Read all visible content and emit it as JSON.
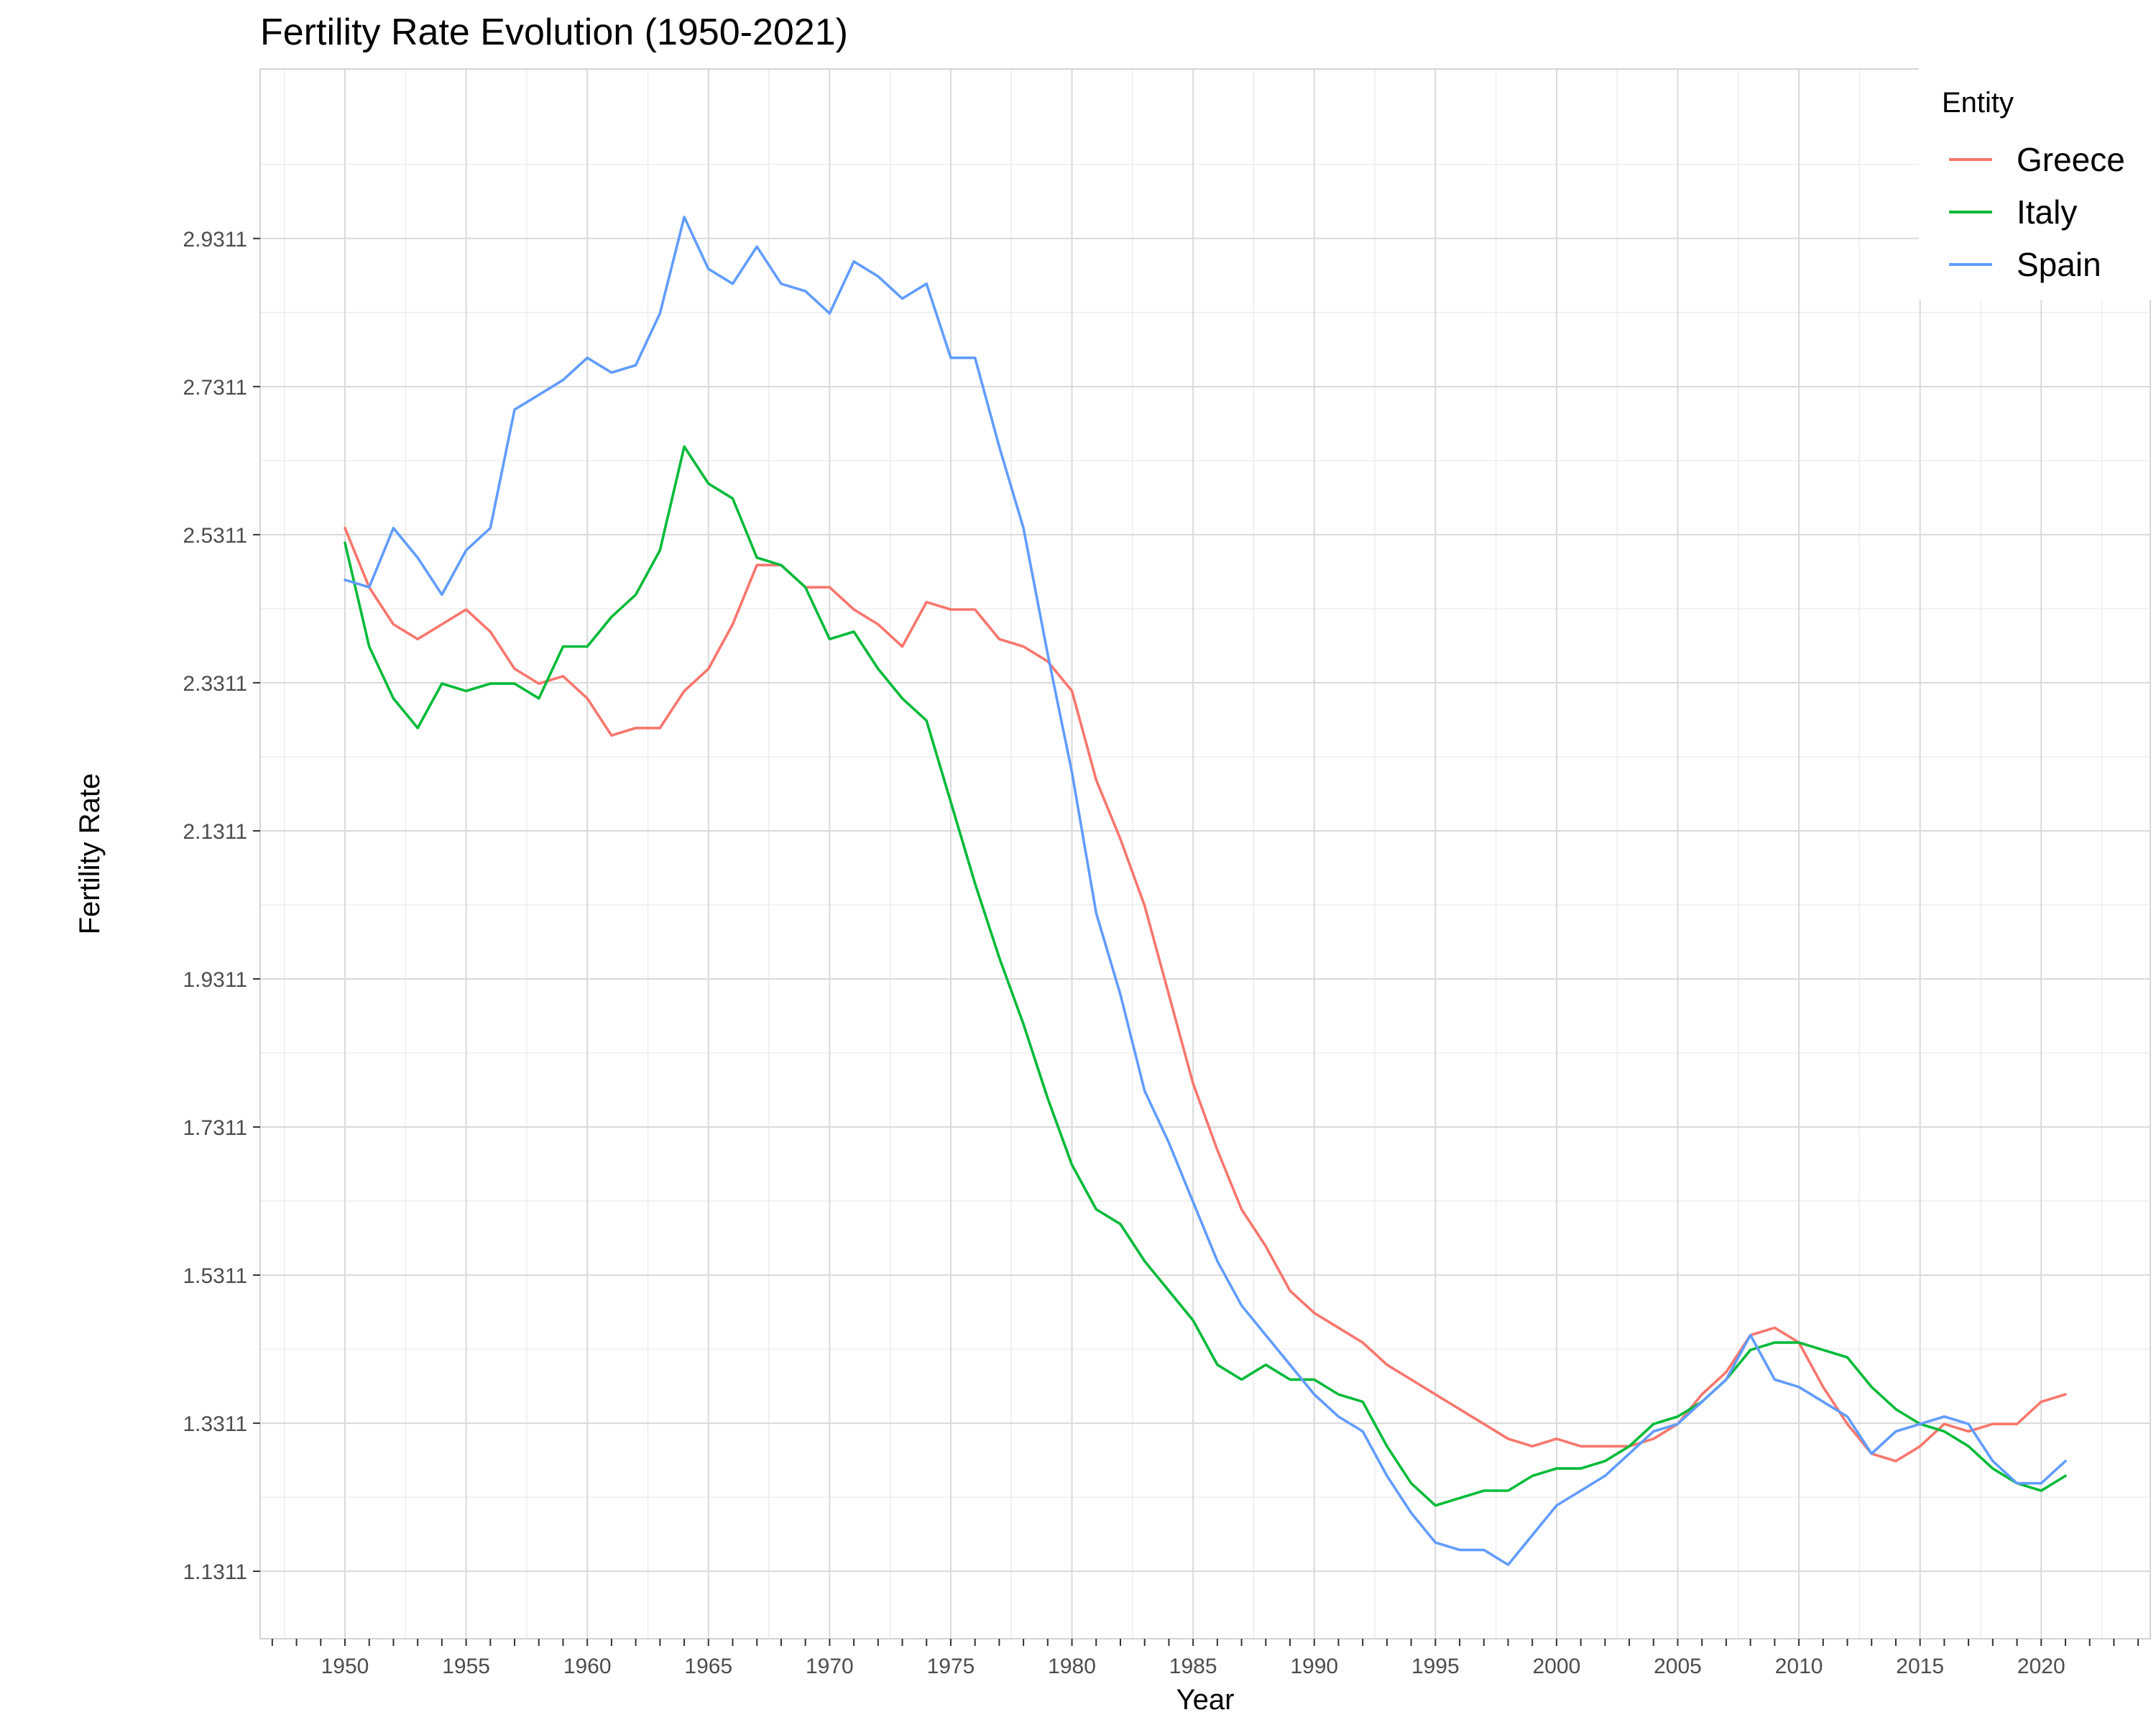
{
  "chart_data": {
    "type": "line",
    "title": "Fertility Rate Evolution (1950-2021)",
    "xlabel": "Year",
    "ylabel": "Fertility Rate",
    "xlim": [
      1946.5,
      2024.5
    ],
    "ylim": [
      1.04,
      3.16
    ],
    "x_ticks": [
      1950,
      1955,
      1960,
      1965,
      1970,
      1975,
      1980,
      1985,
      1990,
      1995,
      2000,
      2005,
      2010,
      2015,
      2020
    ],
    "x_tick_labels": [
      "1950",
      "1955",
      "1960",
      "1965",
      "1970",
      "1975",
      "1980",
      "1985",
      "1990",
      "1995",
      "2000",
      "2005",
      "2010",
      "2015",
      "2020"
    ],
    "y_ticks": [
      1.1311,
      1.3311,
      1.5311,
      1.7311,
      1.9311,
      2.1311,
      2.3311,
      2.5311,
      2.7311,
      2.9311
    ],
    "y_tick_labels": [
      "1.1311",
      "1.3311",
      "1.5311",
      "1.7311",
      "1.9311",
      "2.1311",
      "2.3311",
      "2.5311",
      "2.7311",
      "2.9311"
    ],
    "grid": true,
    "legend": {
      "title": "Entity",
      "position": "top-right"
    },
    "x": [
      1950,
      1951,
      1952,
      1953,
      1954,
      1955,
      1956,
      1957,
      1958,
      1959,
      1960,
      1961,
      1962,
      1963,
      1964,
      1965,
      1966,
      1967,
      1968,
      1969,
      1970,
      1971,
      1972,
      1973,
      1974,
      1975,
      1976,
      1977,
      1978,
      1979,
      1980,
      1981,
      1982,
      1983,
      1984,
      1985,
      1986,
      1987,
      1988,
      1989,
      1990,
      1991,
      1992,
      1993,
      1994,
      1995,
      1996,
      1997,
      1998,
      1999,
      2000,
      2001,
      2002,
      2003,
      2004,
      2005,
      2006,
      2007,
      2008,
      2009,
      2010,
      2011,
      2012,
      2013,
      2014,
      2015,
      2016,
      2017,
      2018,
      2019,
      2020,
      2021
    ],
    "series": [
      {
        "name": "Greece",
        "color": "#F8766D",
        "values": [
          2.54,
          2.46,
          2.41,
          2.39,
          2.41,
          2.43,
          2.4,
          2.35,
          2.33,
          2.34,
          2.31,
          2.26,
          2.27,
          2.27,
          2.32,
          2.35,
          2.41,
          2.49,
          2.49,
          2.46,
          2.46,
          2.43,
          2.41,
          2.38,
          2.44,
          2.43,
          2.43,
          2.39,
          2.38,
          2.36,
          2.32,
          2.2,
          2.12,
          2.03,
          1.91,
          1.79,
          1.7,
          1.62,
          1.57,
          1.51,
          1.48,
          1.46,
          1.44,
          1.41,
          1.39,
          1.37,
          1.35,
          1.33,
          1.31,
          1.3,
          1.31,
          1.3,
          1.3,
          1.3,
          1.31,
          1.33,
          1.37,
          1.4,
          1.45,
          1.46,
          1.44,
          1.38,
          1.33,
          1.29,
          1.28,
          1.3,
          1.33,
          1.32,
          1.33,
          1.33,
          1.36,
          1.37
        ]
      },
      {
        "name": "Italy",
        "color": "#00BA38",
        "values": [
          2.52,
          2.38,
          2.31,
          2.27,
          2.33,
          2.32,
          2.33,
          2.33,
          2.31,
          2.38,
          2.38,
          2.42,
          2.45,
          2.51,
          2.65,
          2.6,
          2.58,
          2.5,
          2.49,
          2.46,
          2.39,
          2.4,
          2.35,
          2.31,
          2.28,
          2.17,
          2.06,
          1.96,
          1.87,
          1.77,
          1.68,
          1.62,
          1.6,
          1.55,
          1.51,
          1.47,
          1.41,
          1.39,
          1.41,
          1.39,
          1.39,
          1.37,
          1.36,
          1.3,
          1.25,
          1.22,
          1.23,
          1.24,
          1.24,
          1.26,
          1.27,
          1.27,
          1.28,
          1.3,
          1.33,
          1.34,
          1.36,
          1.39,
          1.43,
          1.44,
          1.44,
          1.43,
          1.42,
          1.38,
          1.35,
          1.33,
          1.32,
          1.3,
          1.27,
          1.25,
          1.24,
          1.26
        ]
      },
      {
        "name": "Spain",
        "color": "#619CFF",
        "values": [
          2.47,
          2.46,
          2.54,
          2.5,
          2.45,
          2.51,
          2.54,
          2.7,
          2.72,
          2.74,
          2.77,
          2.75,
          2.76,
          2.83,
          2.96,
          2.89,
          2.87,
          2.92,
          2.87,
          2.86,
          2.83,
          2.9,
          2.88,
          2.85,
          2.87,
          2.77,
          2.77,
          2.65,
          2.54,
          2.37,
          2.21,
          2.02,
          1.91,
          1.78,
          1.71,
          1.63,
          1.55,
          1.49,
          1.45,
          1.41,
          1.37,
          1.34,
          1.32,
          1.26,
          1.21,
          1.17,
          1.16,
          1.16,
          1.14,
          1.18,
          1.22,
          1.24,
          1.26,
          1.29,
          1.32,
          1.33,
          1.36,
          1.39,
          1.45,
          1.39,
          1.38,
          1.36,
          1.34,
          1.29,
          1.32,
          1.33,
          1.34,
          1.33,
          1.28,
          1.25,
          1.25,
          1.28
        ]
      }
    ]
  }
}
